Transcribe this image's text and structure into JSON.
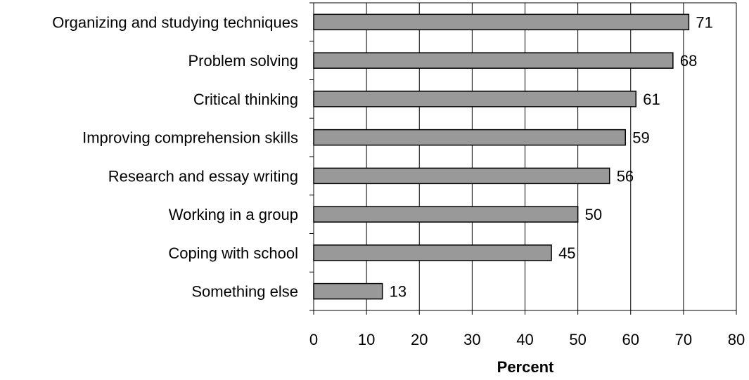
{
  "chart_data": {
    "type": "bar",
    "orientation": "horizontal",
    "categories": [
      "Organizing and studying techniques",
      "Problem solving",
      "Critical thinking",
      "Improving comprehension skills",
      "Research and essay writing",
      "Working in a group",
      "Coping with school",
      "Something else"
    ],
    "values": [
      71,
      68,
      61,
      59,
      56,
      50,
      45,
      13
    ],
    "data_labels": [
      "71",
      "68",
      "61",
      "59",
      "56",
      "50",
      "45",
      "13"
    ],
    "xlabel": "Percent",
    "ylabel": "",
    "xlim": [
      0,
      80
    ],
    "xticks": [
      0,
      10,
      20,
      30,
      40,
      50,
      60,
      70,
      80
    ],
    "xtick_labels": [
      "0",
      "10",
      "20",
      "30",
      "40",
      "50",
      "60",
      "70",
      "80"
    ],
    "grid": true,
    "legend": "none",
    "colors": {
      "bar": "#999999",
      "bar_edge": "#000000",
      "grid": "#000000"
    }
  }
}
